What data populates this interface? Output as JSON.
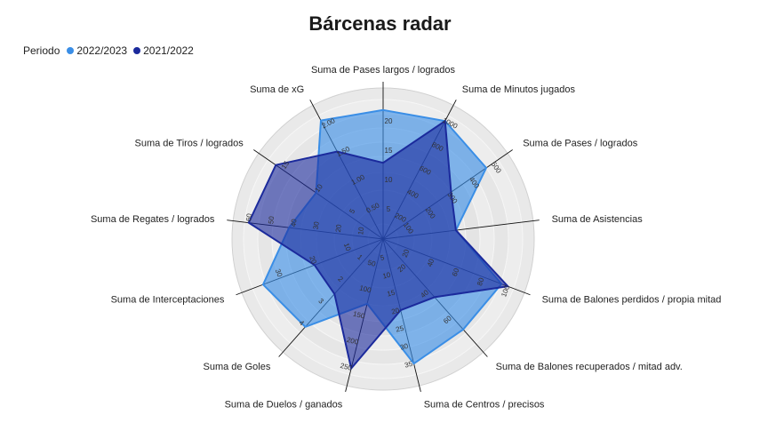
{
  "chart_data": {
    "type": "radar",
    "title": "Bárcenas radar",
    "legend_title": "Periodo",
    "legend_placement": "top-left",
    "axes": [
      {
        "label": "Suma de Pases largos / logrados",
        "ticks": [
          "5",
          "10",
          "15",
          "20"
        ],
        "max": 25
      },
      {
        "label": "Suma de Minutos jugados",
        "ticks": [
          "200",
          "400",
          "600",
          "800",
          "1000"
        ],
        "max": 1100
      },
      {
        "label": "Suma de Pases / logrados",
        "ticks": [
          "100",
          "200",
          "300",
          "400",
          "500"
        ],
        "max": 550
      },
      {
        "label": "Suma de Asistencias",
        "ticks": [],
        "max": 1
      },
      {
        "label": "Suma de Balones perdidos / propia mitad",
        "ticks": [
          "20",
          "40",
          "60",
          "80",
          "100"
        ],
        "max": 110
      },
      {
        "label": "Suma de Balones recuperados / mitad adv.",
        "ticks": [
          "20",
          "40",
          "60"
        ],
        "max": 85
      },
      {
        "label": "Suma de Centros / precisos",
        "ticks": [
          "5",
          "10",
          "15",
          "20",
          "25",
          "30",
          "35"
        ],
        "max": 40
      },
      {
        "label": "Suma de Duelos / ganados",
        "ticks": [
          "50",
          "100",
          "150",
          "200",
          "250"
        ],
        "max": 275
      },
      {
        "label": "Suma de Goles",
        "ticks": [
          "1",
          "2",
          "3",
          "4"
        ],
        "max": 5
      },
      {
        "label": "Suma de Interceptaciones",
        "ticks": [
          "10",
          "20",
          "30"
        ],
        "max": 40
      },
      {
        "label": "Suma de Regates / logrados",
        "ticks": [
          "10",
          "20",
          "30",
          "40",
          "50",
          "60"
        ],
        "max": 65
      },
      {
        "label": "Suma de Tiros / logrados",
        "ticks": [
          "5",
          "10",
          "15"
        ],
        "max": 18
      },
      {
        "label": "Suma de xG",
        "ticks": [
          "0.50",
          "1.00",
          "1.50",
          "2.00"
        ],
        "max": 2.3
      }
    ],
    "series": [
      {
        "name": "2022/2023",
        "color": "#3a8ee6",
        "values": [
          22,
          1000,
          470,
          0.5,
          95,
          70,
          35,
          125,
          4,
          35,
          42,
          10,
          2.1
        ]
      },
      {
        "name": "2021/2022",
        "color": "#1b2a9c",
        "values": [
          13,
          1000,
          310,
          0.5,
          100,
          45,
          20,
          250,
          2.5,
          20,
          60,
          16,
          1.55
        ]
      }
    ],
    "grid": true
  }
}
